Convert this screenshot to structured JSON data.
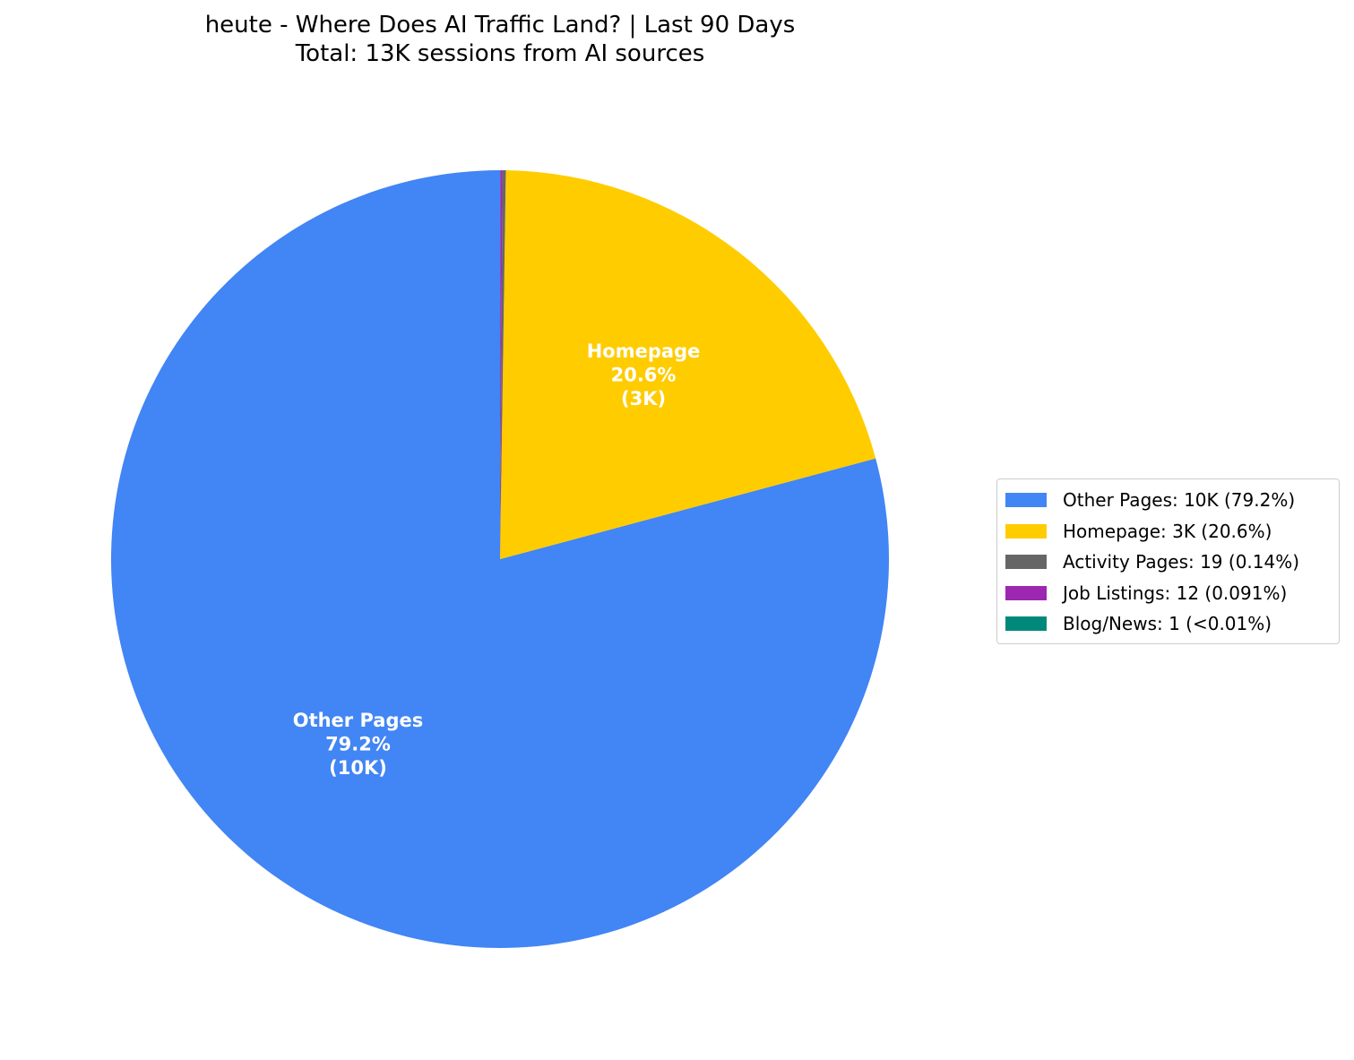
{
  "chart_data": {
    "type": "pie",
    "title": "heute - Where Does AI Traffic Land? | Last 90 Days",
    "subtitle": "Total: 13K sessions from AI sources",
    "legend_position": "right",
    "slices": [
      {
        "label": "Other Pages",
        "value": 10,
        "percent": 79.2,
        "color": "#4285f4",
        "inner_label": [
          "Other Pages",
          "79.2%",
          "(10K)"
        ],
        "legend": "Other Pages: 10K (79.2%)"
      },
      {
        "label": "Homepage",
        "value": 3,
        "percent": 20.6,
        "color": "#ffcc00",
        "inner_label": [
          "Homepage",
          "20.6%",
          "(3K)"
        ],
        "legend": "Homepage: 3K (20.6%)"
      },
      {
        "label": "Activity Pages",
        "value": 19,
        "percent": 0.14,
        "color": "#666666",
        "inner_label": [],
        "legend": "Activity Pages: 19 (0.14%)"
      },
      {
        "label": "Job Listings",
        "value": 12,
        "percent": 0.091,
        "color": "#9c27b0",
        "inner_label": [],
        "legend": "Job Listings: 12 (0.091%)"
      },
      {
        "label": "Blog/News",
        "value": 1,
        "percent": 0.008,
        "color": "#00897b",
        "inner_label": [],
        "legend": "Blog/News: 1 (<0.01%)"
      }
    ]
  }
}
